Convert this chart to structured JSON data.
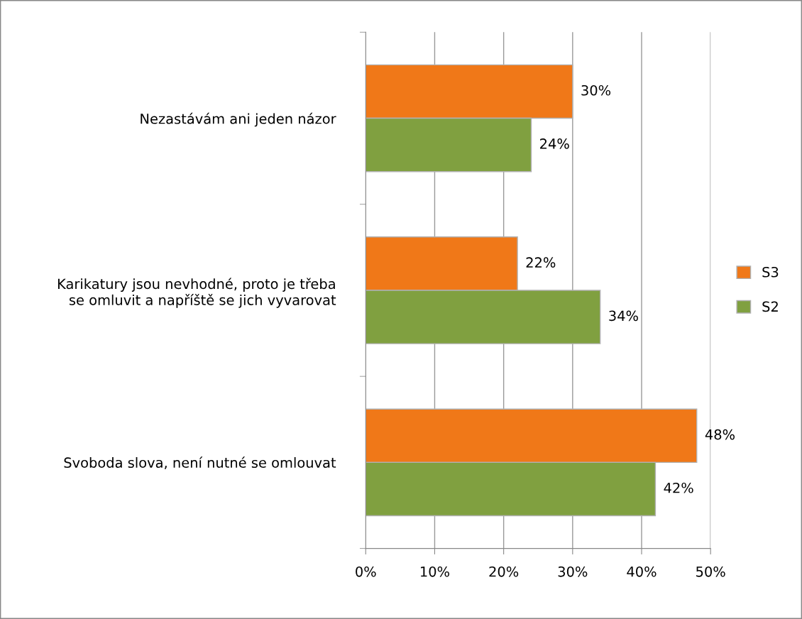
{
  "chart_data": {
    "type": "bar",
    "orientation": "horizontal",
    "categories": [
      "Nezastávám ani jeden názor",
      "Karikatury jsou nevhodné, proto je třeba\nse omluvit a napříště se jich vyvarovat",
      "Svoboda slova, není nutné se omlouvat"
    ],
    "series": [
      {
        "name": "S3",
        "color": "#f07818",
        "values": [
          30,
          22,
          48
        ],
        "value_labels": [
          "30%",
          "22%",
          "48%"
        ]
      },
      {
        "name": "S2",
        "color": "#80a040",
        "values": [
          24,
          34,
          42
        ],
        "value_labels": [
          "24%",
          "34%",
          "42%"
        ]
      }
    ],
    "xlim": [
      0,
      50
    ],
    "xticks": [
      {
        "value": 0,
        "label": "0%"
      },
      {
        "value": 10,
        "label": "10%"
      },
      {
        "value": 20,
        "label": "20%"
      },
      {
        "value": 30,
        "label": "30%"
      },
      {
        "value": 40,
        "label": "40%"
      },
      {
        "value": 50,
        "label": "50%"
      }
    ],
    "grid": "x",
    "legend": "right"
  }
}
